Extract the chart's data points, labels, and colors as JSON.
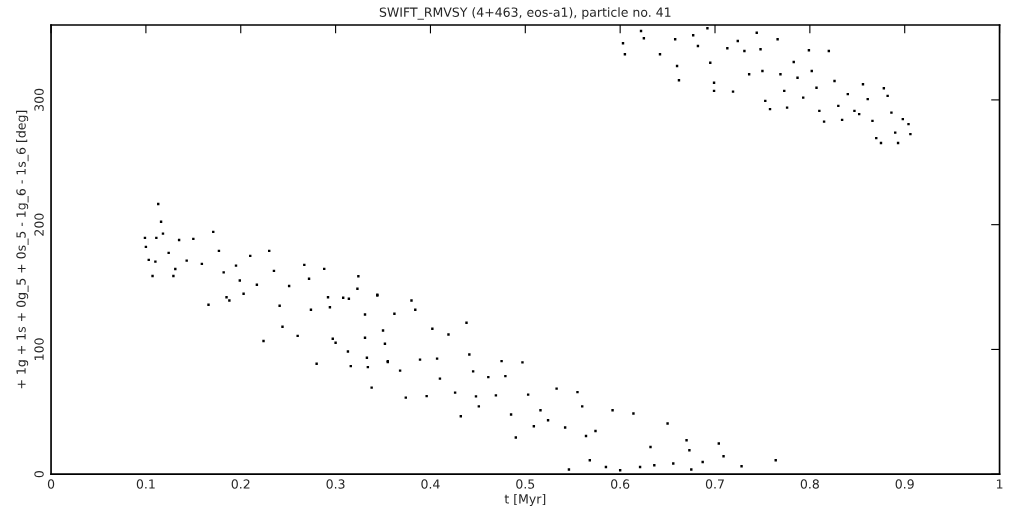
{
  "chart_data": {
    "type": "scatter",
    "title": "SWIFT_RMVSY (4+463, eos-a1), particle no. 41",
    "xlabel": "t [Myr]",
    "ylabel": "+ 1g + 1s + 0g_5 + 0s_5 - 1g_6 - 1s_6 [deg]",
    "xlim": [
      0,
      1
    ],
    "ylim": [
      0,
      360
    ],
    "xticks": [
      0,
      0.1,
      0.2,
      0.3,
      0.4,
      0.5,
      0.6,
      0.7,
      0.8,
      0.9,
      1
    ],
    "yticks": [
      0,
      100,
      200,
      300
    ],
    "marker": "square",
    "series": [
      {
        "color": "#000000",
        "x": [
          0.113,
          0.099,
          0.1,
          0.103,
          0.107,
          0.11,
          0.111,
          0.116,
          0.118,
          0.124,
          0.129,
          0.135,
          0.131,
          0.143,
          0.15,
          0.159,
          0.166,
          0.171,
          0.177,
          0.182,
          0.185,
          0.188,
          0.195,
          0.199,
          0.203,
          0.21,
          0.217,
          0.224,
          0.23,
          0.235,
          0.241,
          0.244,
          0.251,
          0.26,
          0.267,
          0.272,
          0.274,
          0.28,
          0.288,
          0.292,
          0.3,
          0.308,
          0.316,
          0.324,
          0.331,
          0.334,
          0.344,
          0.352,
          0.355,
          0.323,
          0.314,
          0.294,
          0.297,
          0.313,
          0.331,
          0.333,
          0.338,
          0.344,
          0.35,
          0.355,
          0.362,
          0.368,
          0.374,
          0.38,
          0.384,
          0.389,
          0.396,
          0.402,
          0.407,
          0.41,
          0.419,
          0.426,
          0.432,
          0.438,
          0.441,
          0.445,
          0.448,
          0.451,
          0.461,
          0.469,
          0.475,
          0.479,
          0.485,
          0.49,
          0.497,
          0.503,
          0.509,
          0.516,
          0.524,
          0.533,
          0.542,
          0.546,
          0.555,
          0.56,
          0.564,
          0.568,
          0.574,
          0.585,
          0.592,
          0.6,
          0.614,
          0.621,
          0.632,
          0.636,
          0.65,
          0.656,
          0.67,
          0.704,
          0.709,
          0.687,
          0.728,
          0.764,
          0.673,
          0.675,
          0.603,
          0.605,
          0.622,
          0.625,
          0.642,
          0.658,
          0.66,
          0.662,
          0.677,
          0.682,
          0.692,
          0.695,
          0.699,
          0.699,
          0.713,
          0.719,
          0.724,
          0.731,
          0.736,
          0.744,
          0.748,
          0.75,
          0.753,
          0.758,
          0.766,
          0.769,
          0.773,
          0.776,
          0.783,
          0.787,
          0.793,
          0.799,
          0.802,
          0.807,
          0.81,
          0.815,
          0.82,
          0.826,
          0.83,
          0.834,
          0.84,
          0.847,
          0.852,
          0.856,
          0.861,
          0.866,
          0.87,
          0.875,
          0.878,
          0.882,
          0.886,
          0.89,
          0.893,
          0.898,
          0.904,
          0.906
        ],
        "values": [
          216.6,
          189.4,
          182.2,
          171.8,
          158.9,
          170.4,
          189.4,
          202.4,
          192.8,
          177.4,
          158.9,
          187.7,
          164.5,
          171.2,
          188.6,
          168.6,
          135.8,
          194.2,
          179.0,
          161.8,
          141.8,
          139.2,
          167.2,
          155.2,
          144.6,
          175.0,
          151.8,
          106.8,
          179.0,
          163.0,
          135.0,
          118.2,
          150.8,
          110.9,
          167.8,
          156.6,
          131.8,
          88.5,
          164.6,
          141.8,
          105.4,
          141.4,
          86.6,
          158.6,
          109.4,
          85.8,
          143.8,
          104.6,
          90.6,
          148.6,
          140.6,
          133.8,
          108.6,
          98.4,
          128.0,
          93.4,
          69.4,
          143.2,
          115.2,
          89.8,
          128.6,
          83.0,
          61.4,
          139.2,
          131.8,
          91.8,
          62.6,
          116.6,
          92.6,
          76.6,
          112.0,
          65.4,
          46.4,
          121.4,
          96.0,
          82.4,
          62.4,
          54.4,
          77.8,
          63.2,
          90.6,
          78.6,
          47.8,
          29.4,
          89.6,
          63.8,
          38.4,
          51.2,
          43.2,
          68.6,
          37.4,
          3.8,
          65.8,
          54.4,
          30.6,
          11.2,
          34.6,
          5.8,
          51.2,
          3.2,
          48.6,
          5.8,
          21.8,
          7.2,
          40.6,
          8.6,
          27.2,
          24.6,
          14.4,
          9.8,
          6.4,
          11.2,
          19.2,
          3.8,
          345.4,
          336.6,
          355.2,
          349.4,
          336.6,
          348.6,
          327.2,
          315.8,
          351.8,
          343.2,
          357.4,
          329.8,
          313.8,
          307.2,
          341.4,
          306.6,
          347.2,
          339.2,
          320.6,
          353.8,
          340.6,
          323.2,
          299.2,
          292.6,
          348.6,
          320.6,
          307.2,
          293.8,
          330.4,
          317.8,
          301.8,
          339.8,
          323.2,
          309.8,
          291.2,
          282.6,
          339.2,
          315.2,
          295.2,
          284.0,
          304.6,
          291.2,
          288.6,
          312.6,
          300.6,
          283.2,
          269.4,
          265.4,
          309.4,
          303.2,
          289.8,
          273.8,
          265.4,
          284.6,
          280.6,
          272.6
        ]
      }
    ]
  }
}
